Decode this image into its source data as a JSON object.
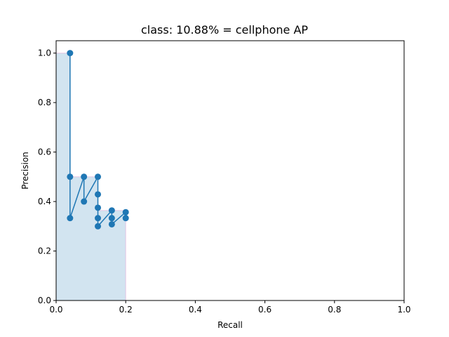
{
  "chart_data": {
    "type": "line",
    "title": "class: 10.88% = cellphone AP",
    "xlabel": "Recall",
    "ylabel": "Precision",
    "xlim": [
      0.0,
      1.0
    ],
    "ylim": [
      0.0,
      1.05
    ],
    "xticks": [
      "0.0",
      "0.2",
      "0.4",
      "0.6",
      "0.8",
      "1.0"
    ],
    "yticks": [
      "0.0",
      "0.2",
      "0.4",
      "0.6",
      "0.8",
      "1.0"
    ],
    "grid": false,
    "series": [
      {
        "kind": "line-with-markers",
        "x": [
          0.04,
          0.04,
          0.04,
          0.08,
          0.08,
          0.12,
          0.12,
          0.12,
          0.12,
          0.12,
          0.16,
          0.16,
          0.16,
          0.2,
          0.2
        ],
        "y": [
          1.0,
          0.5,
          0.333,
          0.5,
          0.4,
          0.5,
          0.429,
          0.375,
          0.333,
          0.3,
          0.364,
          0.333,
          0.308,
          0.357,
          0.333
        ]
      },
      {
        "kind": "interpolated-precision-area",
        "x": [
          0.0,
          0.04,
          0.04,
          0.08,
          0.08,
          0.12,
          0.12,
          0.2,
          0.2
        ],
        "y": [
          1.0,
          1.0,
          0.5,
          0.5,
          0.5,
          0.5,
          0.364,
          0.364,
          0.0
        ]
      }
    ]
  },
  "colors": {
    "line": "#1f77b4",
    "fill": "#1f77b4",
    "fill_edge": "#e377c2"
  }
}
